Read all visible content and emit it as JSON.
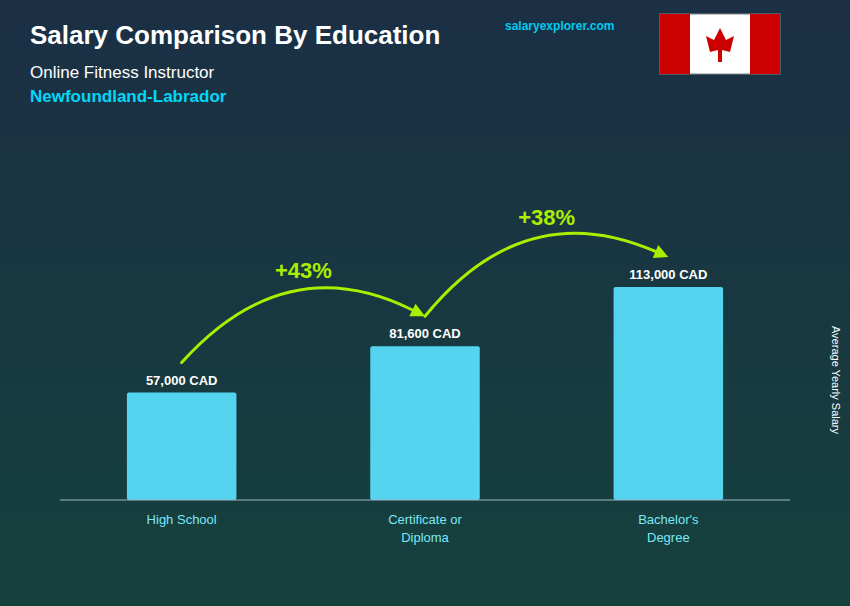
{
  "chart_data": {
    "type": "bar",
    "title": "Salary Comparison By Education",
    "subtitle": "Online Fitness Instructor",
    "location": "Newfoundland-Labrador",
    "source": "salaryexplorer.com",
    "ylabel": "Average Yearly Salary",
    "categories": [
      "High School",
      "Certificate or\nDiploma",
      "Bachelor's\nDegree"
    ],
    "values": [
      57000,
      81600,
      113000
    ],
    "value_labels": [
      "57,000 CAD",
      "81,600 CAD",
      "113,000 CAD"
    ],
    "data_labels": true,
    "color": "#55d4f0",
    "ylim": [
      0,
      175150
    ],
    "grid": false,
    "tick_labels": "x",
    "annotations": [
      {
        "value": 43,
        "label": "+43%"
      },
      {
        "value": 38,
        "label": "+38%"
      }
    ]
  }
}
